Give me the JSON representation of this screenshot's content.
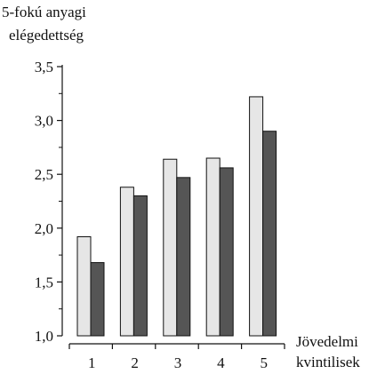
{
  "chart_data": {
    "type": "bar",
    "ylabel": [
      "5-fokú anyagi",
      "elégedettség"
    ],
    "xlabel": [
      "Jövedelmi",
      "kvintilisek"
    ],
    "categories": [
      "1",
      "2",
      "3",
      "4",
      "5"
    ],
    "series": [
      {
        "values": [
          1.92,
          2.38,
          2.64,
          2.65,
          3.22
        ],
        "color": "#e6e6e6"
      },
      {
        "values": [
          1.68,
          2.3,
          2.47,
          2.56,
          2.9
        ],
        "color": "#555555"
      }
    ],
    "ylim": [
      1.0,
      3.5
    ],
    "yticks": [
      "1,0",
      "1,5",
      "2,0",
      "2,5",
      "3,0",
      "3,5"
    ],
    "grid": false,
    "legend": "none"
  }
}
